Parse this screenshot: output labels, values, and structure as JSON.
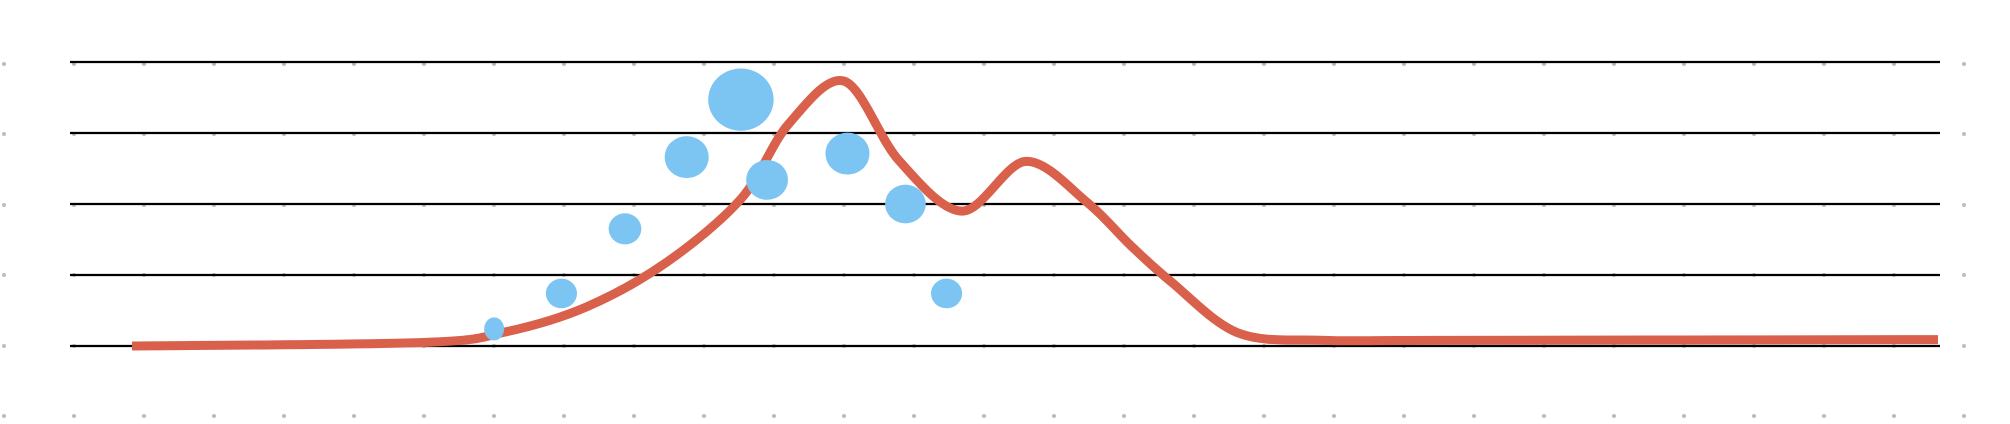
{
  "chart_data": {
    "type": "line",
    "title": "",
    "xlabel": "",
    "ylabel": "",
    "grid": true,
    "grid_dotted_background": true,
    "ylim": [
      0,
      4
    ],
    "gridlines_y": [
      0,
      1,
      2,
      3,
      4
    ],
    "colors": {
      "line": "#d9604a",
      "bubble": "#7cc4f2",
      "gridline": "#000000",
      "dot": "#bdbdbd",
      "background": "#ffffff"
    },
    "x_range": [
      0,
      1
    ],
    "series": [
      {
        "type": "line",
        "points": [
          [
            0.034,
            0.0
          ],
          [
            0.19,
            0.05
          ],
          [
            0.234,
            0.2
          ],
          [
            0.277,
            0.55
          ],
          [
            0.32,
            1.18
          ],
          [
            0.36,
            2.08
          ],
          [
            0.385,
            3.12
          ],
          [
            0.415,
            3.73
          ],
          [
            0.444,
            2.62
          ],
          [
            0.478,
            1.9
          ],
          [
            0.512,
            2.6
          ],
          [
            0.545,
            2.02
          ],
          [
            0.568,
            1.42
          ],
          [
            0.59,
            0.9
          ],
          [
            0.626,
            0.18
          ],
          [
            0.672,
            0.08
          ],
          [
            0.732,
            0.08
          ],
          [
            1.0,
            0.09
          ]
        ]
      },
      {
        "type": "bubble",
        "points": [
          {
            "x": 0.217,
            "y": 0.24,
            "size": 1.0
          },
          {
            "x": 0.253,
            "y": 0.74,
            "size": 2.0
          },
          {
            "x": 0.287,
            "y": 1.65,
            "size": 2.2
          },
          {
            "x": 0.32,
            "y": 2.66,
            "size": 4.0
          },
          {
            "x": 0.349,
            "y": 3.47,
            "size": 8.8
          },
          {
            "x": 0.363,
            "y": 2.34,
            "size": 3.6
          },
          {
            "x": 0.406,
            "y": 2.71,
            "size": 4.0
          },
          {
            "x": 0.437,
            "y": 2.0,
            "size": 3.4
          },
          {
            "x": 0.459,
            "y": 0.74,
            "size": 2.0
          }
        ]
      }
    ]
  }
}
